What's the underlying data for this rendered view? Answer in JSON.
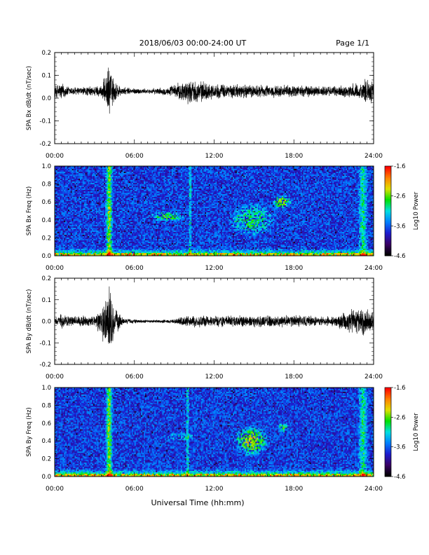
{
  "header": {
    "date_range": "2018/06/03  00:00-24:00 UT",
    "page": "Page 1/1"
  },
  "footer": {
    "xlabel": "Universal Time (hh:mm)"
  },
  "colors": {
    "trace": "#000000",
    "colormap": [
      "#000000",
      "#3a0066",
      "#1c1cd0",
      "#0080ff",
      "#00e0e0",
      "#00e000",
      "#e0e000",
      "#ff8000",
      "#ff0000"
    ]
  },
  "chart_data": [
    {
      "type": "line",
      "ylabel": "SPA Bx dB/dt (nT/sec)",
      "x_ticks": [
        "00:00",
        "06:00",
        "12:00",
        "18:00",
        "24:00"
      ],
      "xlim": [
        0,
        24
      ],
      "ylim": [
        -0.2,
        0.2
      ],
      "y_ticks": [
        "0.2",
        "0.1",
        "0.0",
        "-0.1",
        "-0.2"
      ],
      "baseline": 0.03,
      "activity": [
        {
          "hour": 0.0,
          "amp": 0.03
        },
        {
          "hour": 0.5,
          "amp": 0.045
        },
        {
          "hour": 1.0,
          "amp": 0.025
        },
        {
          "hour": 2.0,
          "amp": 0.02
        },
        {
          "hour": 3.5,
          "amp": 0.03
        },
        {
          "hour": 4.0,
          "amp": 0.1
        },
        {
          "hour": 4.1,
          "amp": 0.16
        },
        {
          "hour": 4.3,
          "amp": 0.08
        },
        {
          "hour": 5.0,
          "amp": 0.02
        },
        {
          "hour": 7.0,
          "amp": 0.012
        },
        {
          "hour": 8.5,
          "amp": 0.02
        },
        {
          "hour": 10.0,
          "amp": 0.06
        },
        {
          "hour": 11.0,
          "amp": 0.05
        },
        {
          "hour": 12.0,
          "amp": 0.035
        },
        {
          "hour": 14.0,
          "amp": 0.035
        },
        {
          "hour": 16.0,
          "amp": 0.03
        },
        {
          "hour": 18.0,
          "amp": 0.03
        },
        {
          "hour": 21.0,
          "amp": 0.025
        },
        {
          "hour": 23.0,
          "amp": 0.04
        },
        {
          "hour": 23.5,
          "amp": 0.07
        },
        {
          "hour": 24.0,
          "amp": 0.05
        }
      ]
    },
    {
      "type": "heatmap",
      "ylabel": "SPA Bx Freq (Hz)",
      "x_ticks": [
        "00:00",
        "06:00",
        "12:00",
        "18:00",
        "24:00"
      ],
      "xlim": [
        0,
        24
      ],
      "ylim": [
        0.0,
        1.0
      ],
      "y_ticks": [
        "1.0",
        "0.8",
        "0.6",
        "0.4",
        "0.2",
        "0.0"
      ],
      "colorbar": {
        "label": "Log10 Power",
        "range": [
          -4.6,
          -1.6
        ],
        "ticks": [
          "-1.6",
          "-2.6",
          "-3.6",
          "-4.6"
        ]
      },
      "features": [
        {
          "kind": "column",
          "hour": 4.1,
          "width": 0.3,
          "strength": 0.55
        },
        {
          "kind": "blob",
          "hour": 8.5,
          "freq": 0.44,
          "width": 1.5,
          "height": 0.06,
          "strength": 0.35
        },
        {
          "kind": "blob",
          "hour": 14.8,
          "freq": 0.4,
          "width": 1.8,
          "height": 0.2,
          "strength": 0.3
        },
        {
          "kind": "blob",
          "hour": 17.1,
          "freq": 0.6,
          "width": 0.8,
          "height": 0.08,
          "strength": 0.45
        },
        {
          "kind": "column",
          "hour": 10.2,
          "width": 0.15,
          "strength": 0.3
        },
        {
          "kind": "column",
          "hour": 23.2,
          "width": 0.4,
          "strength": 0.35
        }
      ]
    },
    {
      "type": "line",
      "ylabel": "SPA By dB/dt (nT/sec)",
      "x_ticks": [
        "00:00",
        "06:00",
        "12:00",
        "18:00",
        "24:00"
      ],
      "xlim": [
        0,
        24
      ],
      "ylim": [
        -0.2,
        0.2
      ],
      "y_ticks": [
        "0.2",
        "0.1",
        "0.0",
        "-0.1",
        "-0.2"
      ],
      "baseline": 0.0,
      "activity": [
        {
          "hour": 0.0,
          "amp": 0.02
        },
        {
          "hour": 0.5,
          "amp": 0.04
        },
        {
          "hour": 1.0,
          "amp": 0.025
        },
        {
          "hour": 2.0,
          "amp": 0.03
        },
        {
          "hour": 3.0,
          "amp": 0.025
        },
        {
          "hour": 3.8,
          "amp": 0.12
        },
        {
          "hour": 4.1,
          "amp": 0.2
        },
        {
          "hour": 4.4,
          "amp": 0.1
        },
        {
          "hour": 5.2,
          "amp": 0.015
        },
        {
          "hour": 7.0,
          "amp": 0.008
        },
        {
          "hour": 9.0,
          "amp": 0.01
        },
        {
          "hour": 10.0,
          "amp": 0.03
        },
        {
          "hour": 12.0,
          "amp": 0.03
        },
        {
          "hour": 15.0,
          "amp": 0.03
        },
        {
          "hour": 18.0,
          "amp": 0.03
        },
        {
          "hour": 21.0,
          "amp": 0.025
        },
        {
          "hour": 23.0,
          "amp": 0.08
        },
        {
          "hour": 23.5,
          "amp": 0.06
        },
        {
          "hour": 24.0,
          "amp": 0.04
        }
      ]
    },
    {
      "type": "heatmap",
      "ylabel": "SPA By Freq (Hz)",
      "x_ticks": [
        "00:00",
        "06:00",
        "12:00",
        "18:00",
        "24:00"
      ],
      "xlim": [
        0,
        24
      ],
      "ylim": [
        0.0,
        1.0
      ],
      "y_ticks": [
        "1.0",
        "0.8",
        "0.6",
        "0.4",
        "0.2",
        "0.0"
      ],
      "colorbar": {
        "label": "Log10 Power",
        "range": [
          -4.6,
          -1.6
        ],
        "ticks": [
          "-1.6",
          "-2.6",
          "-3.6",
          "-4.6"
        ]
      },
      "features": [
        {
          "kind": "column",
          "hour": 4.1,
          "width": 0.3,
          "strength": 0.55
        },
        {
          "kind": "blob",
          "hour": 14.8,
          "freq": 0.4,
          "width": 1.4,
          "height": 0.18,
          "strength": 0.45
        },
        {
          "kind": "blob",
          "hour": 17.2,
          "freq": 0.55,
          "width": 0.5,
          "height": 0.06,
          "strength": 0.35
        },
        {
          "kind": "blob",
          "hour": 9.5,
          "freq": 0.45,
          "width": 1.2,
          "height": 0.05,
          "strength": 0.2
        },
        {
          "kind": "column",
          "hour": 10.0,
          "width": 0.15,
          "strength": 0.3
        },
        {
          "kind": "column",
          "hour": 23.2,
          "width": 0.4,
          "strength": 0.35
        }
      ]
    }
  ]
}
